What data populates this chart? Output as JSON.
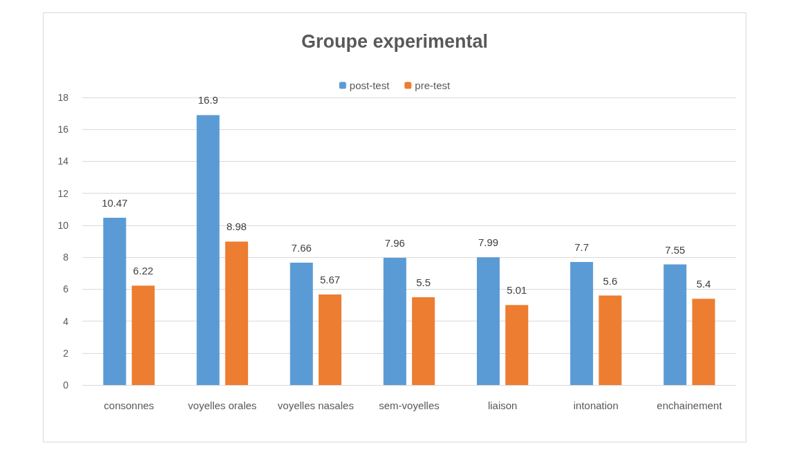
{
  "chart_data": {
    "type": "bar",
    "title": "Groupe experimental",
    "categories": [
      "consonnes",
      "voyelles orales",
      "voyelles nasales",
      "sem-voyelles",
      "liaison",
      "intonation",
      "enchainement"
    ],
    "series": [
      {
        "name": "post-test",
        "color": "#5b9bd5",
        "values": [
          10.47,
          16.9,
          7.66,
          7.96,
          7.99,
          7.7,
          7.55
        ]
      },
      {
        "name": "pre-test",
        "color": "#ed7d31",
        "values": [
          6.22,
          8.98,
          5.67,
          5.5,
          5.01,
          5.6,
          5.4
        ]
      }
    ],
    "ylim": [
      0,
      18
    ],
    "yticks": [
      0,
      2,
      4,
      6,
      8,
      10,
      12,
      14,
      16,
      18
    ],
    "grid": "y",
    "legend": "top",
    "data_labels": true
  }
}
